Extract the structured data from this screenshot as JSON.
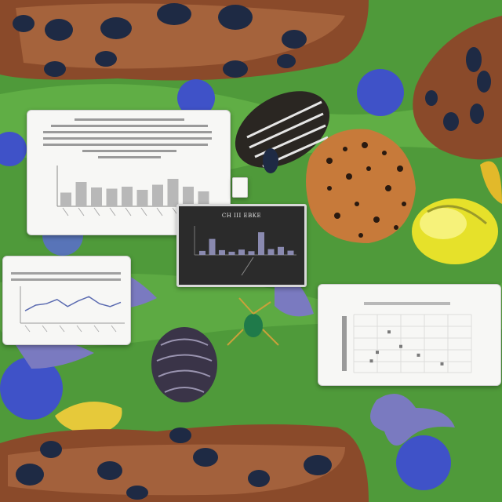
{
  "scene": {
    "colors": {
      "meadow": "#4f9a3a",
      "meadow_light": "#6fbf4f",
      "bark": "#8a4a2a",
      "bark_light": "#b8744a",
      "blossom": "#3f52c8",
      "pebble": "#1e2a44",
      "yellow_pod": "#e6e12a",
      "card_bg": "#f7f7f5",
      "dark_card_bg": "#2b2b2b",
      "bar_fill": "#b8b8b8"
    },
    "creature_names": [
      "spotted-shell",
      "striped-pillbug",
      "urchin-ball",
      "yellow-pod",
      "green-beetle",
      "lavender-starfish"
    ]
  },
  "dark_card": {
    "title": "CH III EBKE"
  },
  "card_bar": {
    "chart_type": "bar",
    "values": [
      0.35,
      0.62,
      0.48,
      0.45,
      0.5,
      0.42,
      0.55,
      0.7,
      0.5,
      0.38
    ]
  },
  "card_dark_chart": {
    "chart_type": "bar",
    "values": [
      0.15,
      0.6,
      0.18,
      0.12,
      0.2,
      0.14,
      0.85,
      0.22,
      0.3,
      0.16
    ]
  },
  "card_line": {
    "chart_type": "line",
    "values": [
      0.3,
      0.5,
      0.55,
      0.7,
      0.45,
      0.65,
      0.8,
      0.55,
      0.45,
      0.6
    ]
  },
  "card_scatter": {
    "chart_type": "scatter",
    "points": [
      [
        0.15,
        0.2
      ],
      [
        0.2,
        0.35
      ],
      [
        0.4,
        0.45
      ],
      [
        0.55,
        0.3
      ],
      [
        0.75,
        0.15
      ],
      [
        0.3,
        0.7
      ]
    ]
  }
}
